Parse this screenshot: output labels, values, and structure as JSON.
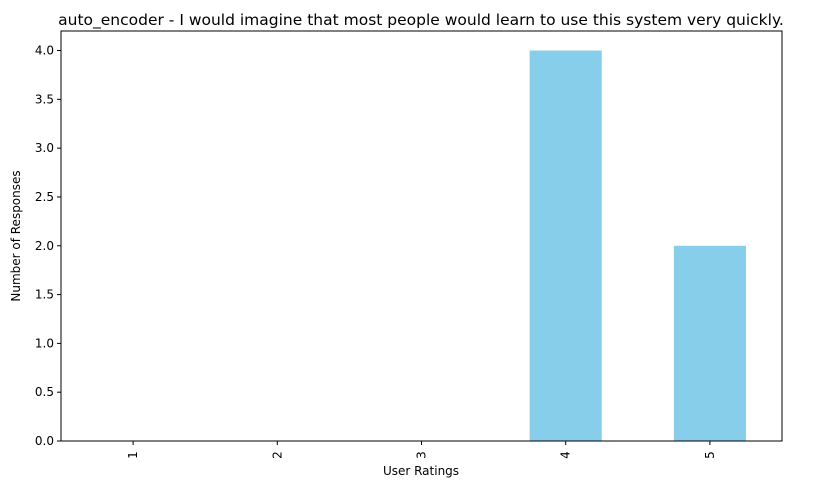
{
  "chart_data": {
    "type": "bar",
    "title": "auto_encoder - I would imagine that most people would learn to use this system very quickly.",
    "xlabel": "User Ratings",
    "ylabel": "Number of Responses",
    "categories": [
      "1",
      "2",
      "3",
      "4",
      "5"
    ],
    "values": [
      0,
      0,
      0,
      4,
      2
    ],
    "ylim": [
      0,
      4.2
    ],
    "yticks": [
      "0.0",
      "0.5",
      "1.0",
      "1.5",
      "2.0",
      "2.5",
      "3.0",
      "3.5",
      "4.0"
    ],
    "bar_color": "#87ceeb",
    "grid": false,
    "legend": "none"
  }
}
